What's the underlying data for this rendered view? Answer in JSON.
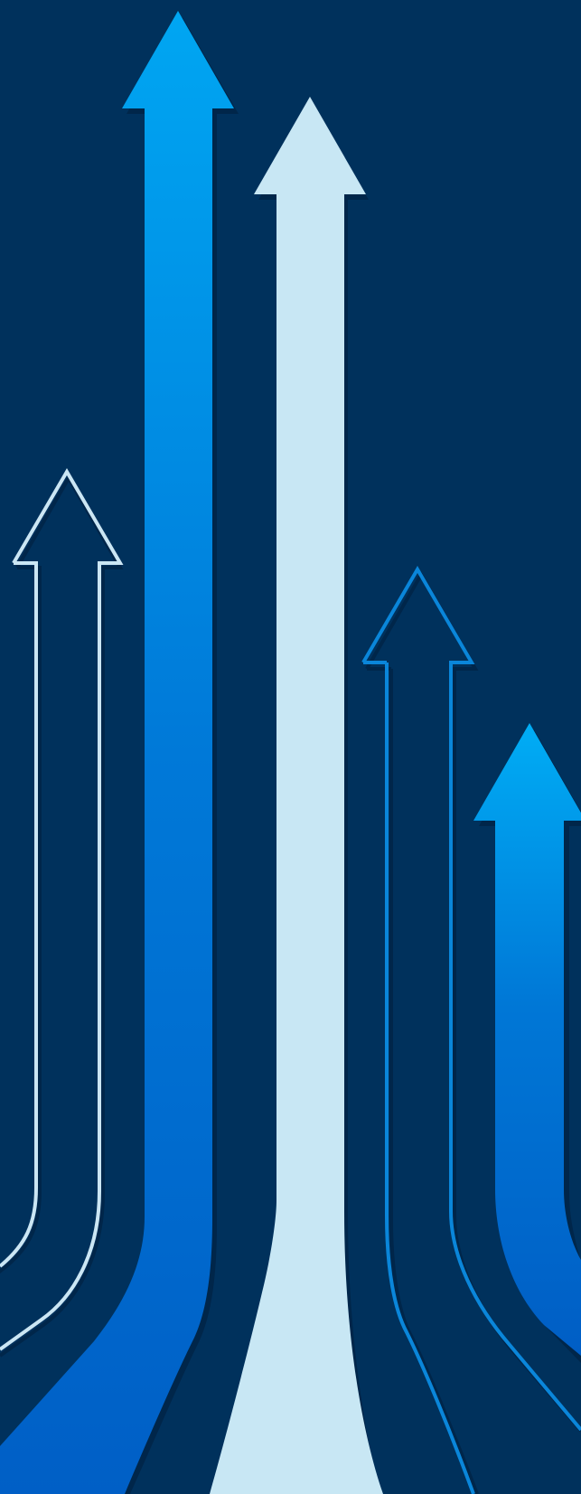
{
  "background": {
    "color": "#00315c"
  },
  "colors": {
    "shadow": "#00264a",
    "pale_blue": "#c8e7f4",
    "outline_light": "#cbe6f4",
    "outline_blue": "#0a86da",
    "gradient_top": "#00a6f2",
    "gradient_mid": "#0077d6",
    "gradient_bottom": "#0060c8"
  },
  "arrows": [
    {
      "id": "outline-light-arrow",
      "style": "outline",
      "color_key": "outline_light"
    },
    {
      "id": "gradient-tall-arrow",
      "style": "filled-gradient",
      "color_key": "gradient_top"
    },
    {
      "id": "pale-solid-arrow",
      "style": "filled",
      "color_key": "pale_blue"
    },
    {
      "id": "outline-blue-arrow",
      "style": "outline",
      "color_key": "outline_blue"
    },
    {
      "id": "gradient-right-arrow",
      "style": "filled-gradient",
      "color_key": "gradient_top"
    }
  ]
}
